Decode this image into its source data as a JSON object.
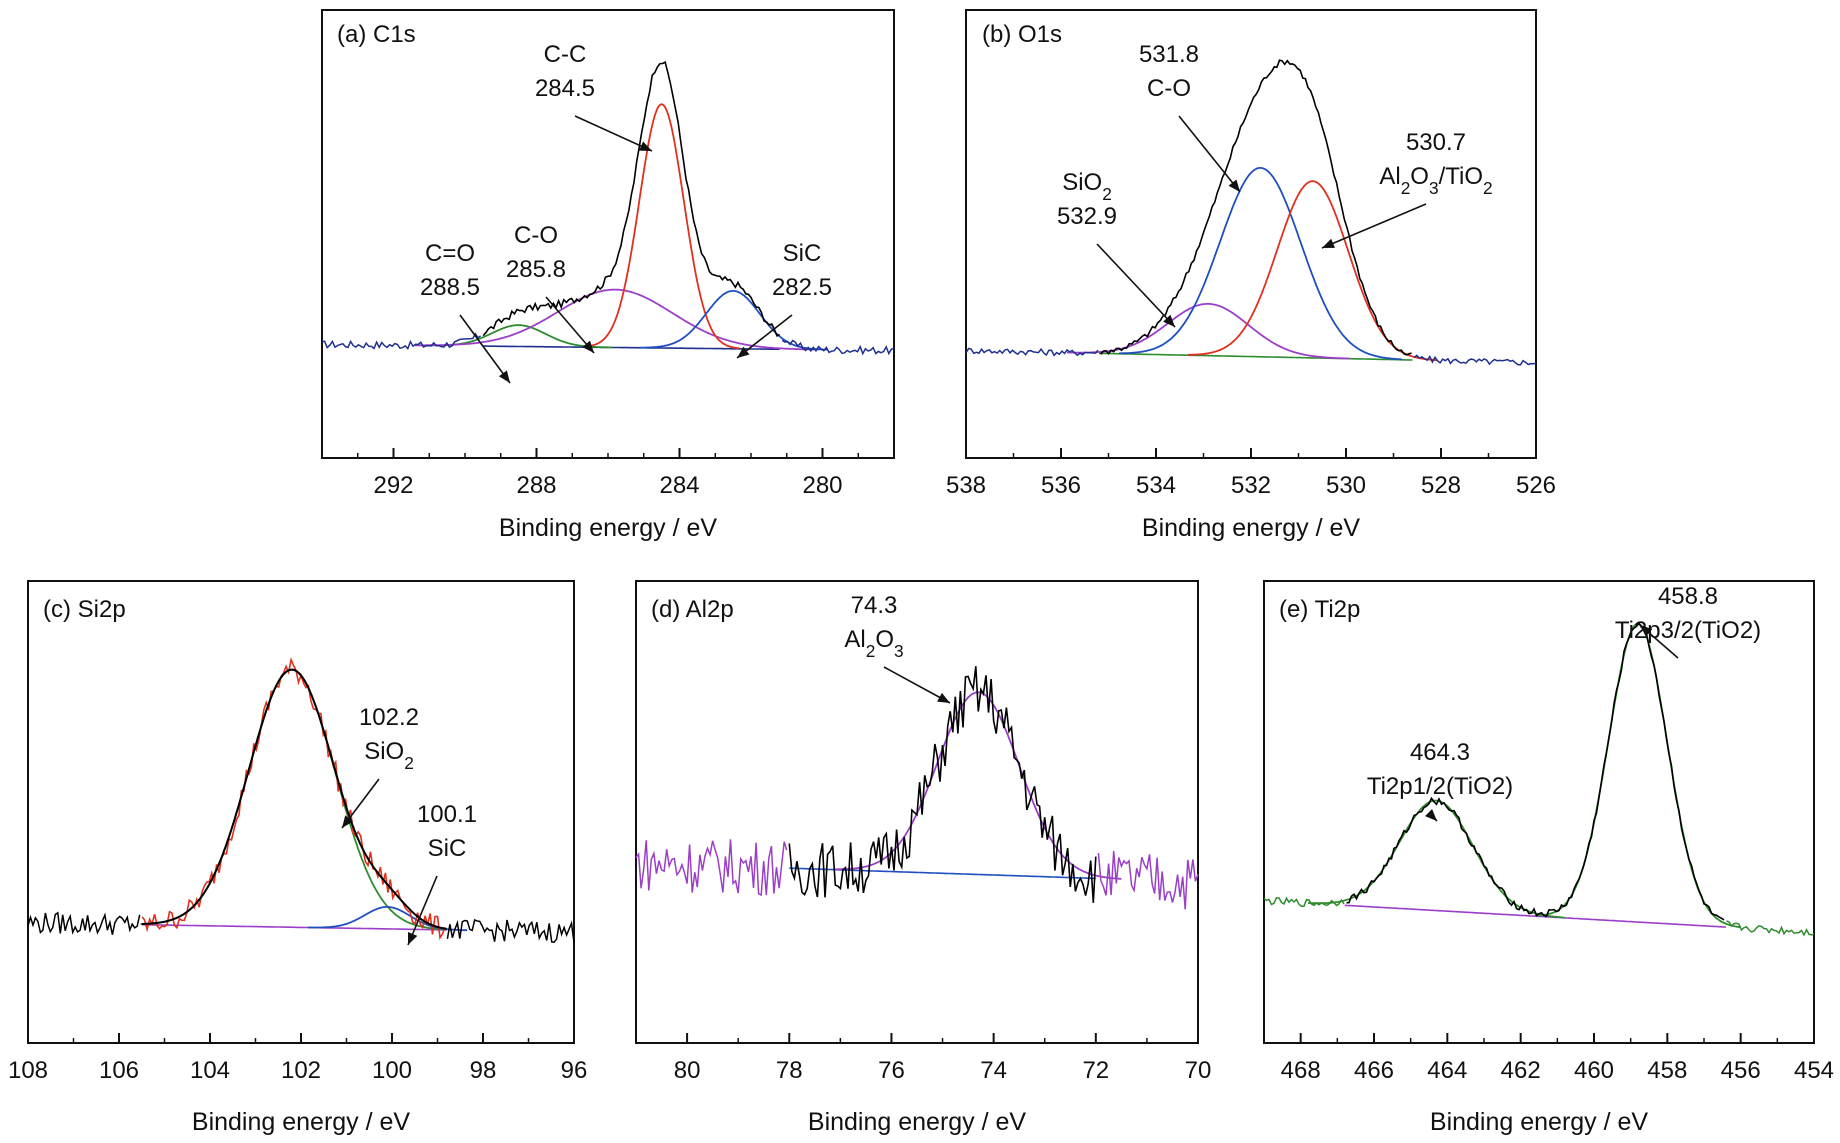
{
  "chart_data": [
    {
      "id": "a",
      "panel_label": "(a) C1s",
      "type": "line",
      "xlabel": "Binding energy / eV",
      "xlim": [
        294,
        278
      ],
      "x_ticks": [
        292,
        288,
        284,
        280
      ],
      "x_reversed": true,
      "y_axis_labels": false,
      "grid": false,
      "colors": {
        "raw": "#000000",
        "CC": "#e0301e",
        "CO": "#9b3fc9",
        "CdO": "#2e8b2e",
        "SiC": "#1f4fbf",
        "bg": "#1f2f8f"
      },
      "peaks": [
        {
          "key": "CdO",
          "center": 288.5,
          "height": 0.07,
          "width": 0.75
        },
        {
          "key": "CO",
          "center": 285.8,
          "height": 0.19,
          "width": 1.6
        },
        {
          "key": "CC",
          "center": 284.5,
          "height": 0.8,
          "width": 0.62
        },
        {
          "key": "SiC",
          "center": 282.5,
          "height": 0.19,
          "width": 0.75
        }
      ],
      "envelope": {
        "key": "raw",
        "x_range": [
          289.5,
          281.2
        ],
        "noise_outside_key": "bg"
      },
      "background": {
        "key": "bg",
        "y_left": 0.02,
        "y_right": 0.0
      },
      "annotations": [
        {
          "lines": [
            "C=O",
            "288.5"
          ],
          "x": 288.5
        },
        {
          "lines": [
            "C-O",
            "285.8"
          ],
          "x": 285.8
        },
        {
          "lines": [
            "C-C",
            "284.5"
          ],
          "x": 284.5
        },
        {
          "lines": [
            "SiC",
            "282.5"
          ],
          "x": 282.5
        }
      ]
    },
    {
      "id": "b",
      "panel_label": "(b) O1s",
      "type": "line",
      "xlabel": "Binding energy / eV",
      "xlim": [
        538,
        526
      ],
      "x_ticks": [
        538,
        536,
        534,
        532,
        530,
        528,
        526
      ],
      "x_reversed": true,
      "y_axis_labels": false,
      "grid": false,
      "colors": {
        "raw": "#000000",
        "SiO2": "#9b3fc9",
        "CO": "#1f4fbf",
        "Al2O3": "#e0301e",
        "bg": "#2e8b2e",
        "fit": "#1f2f8f"
      },
      "peaks": [
        {
          "key": "SiO2",
          "center": 532.9,
          "height": 0.17,
          "width": 0.85
        },
        {
          "key": "CO",
          "center": 531.8,
          "height": 0.62,
          "width": 0.85
        },
        {
          "key": "Al2O3",
          "center": 530.7,
          "height": 0.58,
          "width": 0.75
        }
      ],
      "envelope": {
        "key": "raw",
        "x_range": [
          535.2,
          528.6
        ],
        "noise_outside_key": "fit"
      },
      "background": {
        "key": "bg",
        "y_left": 0.0,
        "y_right": -0.04
      },
      "annotations": [
        {
          "lines": [
            "SiO2",
            "532.9"
          ],
          "x": 532.9
        },
        {
          "lines": [
            "531.8",
            "C-O"
          ],
          "x": 531.8
        },
        {
          "lines": [
            "530.7",
            "Al2O3/TiO2"
          ],
          "x": 530.7
        }
      ]
    },
    {
      "id": "c",
      "panel_label": "(c) Si2p",
      "type": "line",
      "xlabel": "Binding energy / eV",
      "xlim": [
        108,
        96
      ],
      "x_ticks": [
        108,
        106,
        104,
        102,
        100,
        98,
        96
      ],
      "x_reversed": true,
      "y_axis_labels": false,
      "grid": false,
      "colors": {
        "raw": "#e0301e",
        "SiO2": "#2e8b2e",
        "SiC": "#1f4fbf",
        "bg": "#9b3fc9",
        "fit": "#000000"
      },
      "peaks": [
        {
          "key": "SiO2",
          "center": 102.2,
          "height": 0.82,
          "width": 0.95
        },
        {
          "key": "SiC",
          "center": 100.1,
          "height": 0.07,
          "width": 0.5
        }
      ],
      "envelope": {
        "key": "fit",
        "x_range": [
          105.5,
          98.8
        ],
        "noise_outside_key": "fit"
      },
      "background": {
        "key": "bg",
        "y_left": 0.03,
        "y_right": 0.0
      },
      "annotations": [
        {
          "lines": [
            "102.2",
            "SiO2"
          ],
          "x": 102.2
        },
        {
          "lines": [
            "100.1",
            "SiC"
          ],
          "x": 100.1
        }
      ]
    },
    {
      "id": "d",
      "panel_label": "(d) Al2p",
      "type": "line",
      "xlabel": "Binding energy / eV",
      "xlim": [
        81,
        70
      ],
      "x_ticks": [
        80,
        78,
        76,
        74,
        72,
        70
      ],
      "x_reversed": true,
      "y_axis_labels": false,
      "grid": false,
      "colors": {
        "raw": "#000000",
        "Al2O3": "#9b3fc9",
        "bg": "#1f4fbf",
        "noise": "#9b3fc9"
      },
      "peaks": [
        {
          "key": "Al2O3",
          "center": 74.3,
          "height": 0.58,
          "width": 0.8
        }
      ],
      "envelope": {
        "key": "raw",
        "x_range": [
          78.0,
          72.0
        ],
        "noise_outside_key": "noise"
      },
      "background": {
        "key": "bg",
        "y_left": 0.22,
        "y_right": 0.16
      },
      "annotations": [
        {
          "lines": [
            "74.3",
            "Al2O3"
          ],
          "x": 74.3
        }
      ]
    },
    {
      "id": "e",
      "panel_label": "(e) Ti2p",
      "type": "line",
      "xlabel": "Binding energy / eV",
      "xlim": [
        469,
        454
      ],
      "x_ticks": [
        468,
        466,
        464,
        462,
        460,
        458,
        456,
        454
      ],
      "x_reversed": true,
      "y_axis_labels": false,
      "grid": false,
      "colors": {
        "raw": "#000000",
        "Ti12": "#2e8b2e",
        "Ti32": "#2e8b2e",
        "bg": "#9b3fc9",
        "noise": "#2e8b2e"
      },
      "peaks": [
        {
          "key": "Ti12",
          "center": 464.3,
          "height": 0.35,
          "width": 1.0
        },
        {
          "key": "Ti32",
          "center": 458.8,
          "height": 0.95,
          "width": 0.8
        }
      ],
      "envelope": {
        "key": "raw",
        "x_range": [
          466.8,
          456.4
        ],
        "noise_outside_key": "noise"
      },
      "background": {
        "key": "bg",
        "y_left": 0.1,
        "y_right": 0.0
      },
      "annotations": [
        {
          "lines": [
            "464.3",
            "Ti2p1/2(TiO2)"
          ],
          "x": 464.3
        },
        {
          "lines": [
            "458.8",
            "Ti2p3/2(TiO2)"
          ],
          "x": 458.8
        }
      ]
    }
  ]
}
